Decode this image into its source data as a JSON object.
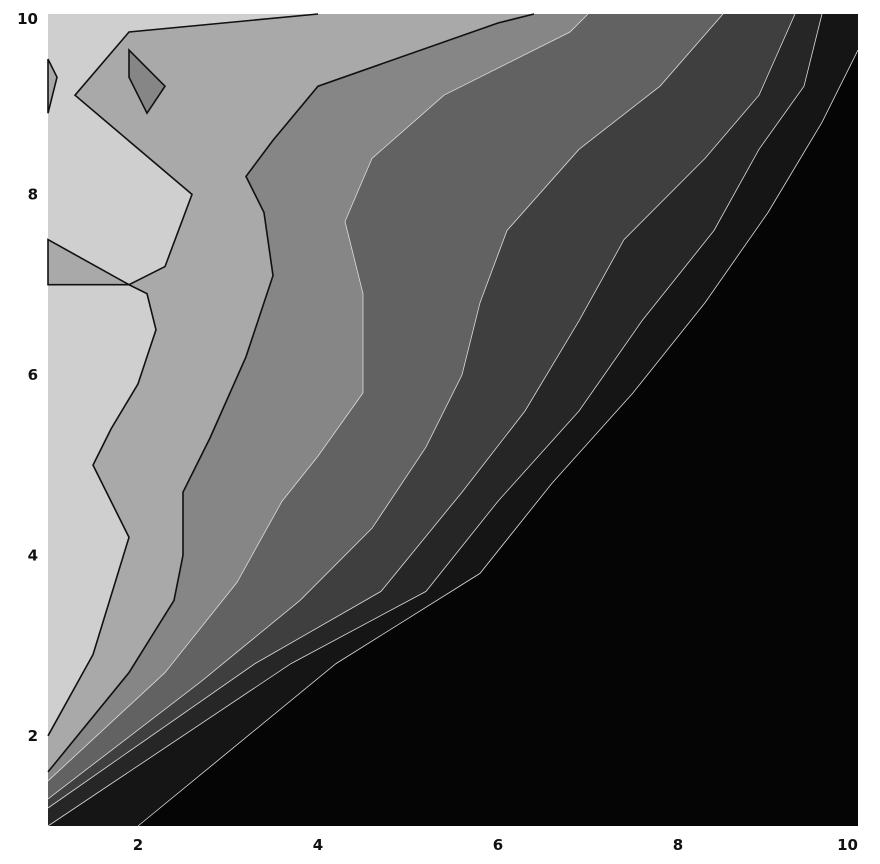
{
  "chart_data": {
    "type": "contour",
    "title": "",
    "xlabel": "",
    "ylabel": "",
    "xlim": [
      1,
      10
    ],
    "ylim": [
      1,
      10
    ],
    "grid": false,
    "legend": "none",
    "x_ticks": [
      "2",
      "4",
      "6",
      "8",
      "10"
    ],
    "y_ticks": [
      "2",
      "4",
      "6",
      "8",
      "10"
    ],
    "fill_colors": [
      "#cfcfcf",
      "#a9a9a9",
      "#868686",
      "#626262",
      "#3f3f3f",
      "#262626",
      "#151515",
      "#050505"
    ],
    "line_color": "#111111",
    "contour_lines": [
      {
        "level": 1,
        "points": [
          [
            1.0,
            2.0
          ],
          [
            1.5,
            2.9
          ],
          [
            1.9,
            4.2
          ],
          [
            1.5,
            5.0
          ],
          [
            1.7,
            5.4
          ],
          [
            2.0,
            5.9
          ],
          [
            2.1,
            6.2
          ],
          [
            2.2,
            6.5
          ],
          [
            2.1,
            6.9
          ],
          [
            1.9,
            7.0
          ],
          [
            2.3,
            7.2
          ],
          [
            2.6,
            8.0
          ],
          [
            1.3,
            9.1
          ],
          [
            1.9,
            9.8
          ],
          [
            4.0,
            10.0
          ]
        ]
      },
      {
        "level": 2,
        "points": [
          [
            1.0,
            1.6
          ],
          [
            1.9,
            2.7
          ],
          [
            2.4,
            3.5
          ],
          [
            2.5,
            4.0
          ],
          [
            2.5,
            4.7
          ],
          [
            2.8,
            5.3
          ],
          [
            3.2,
            6.2
          ],
          [
            3.5,
            7.1
          ],
          [
            3.4,
            7.8
          ],
          [
            3.2,
            8.2
          ],
          [
            3.5,
            8.6
          ],
          [
            4.0,
            9.2
          ],
          [
            6.0,
            9.9
          ],
          [
            6.4,
            10.0
          ]
        ]
      },
      {
        "level": 3,
        "points": [
          [
            1.0,
            1.5
          ],
          [
            2.3,
            2.7
          ],
          [
            3.1,
            3.7
          ],
          [
            3.6,
            4.6
          ],
          [
            4.0,
            5.1
          ],
          [
            4.5,
            5.8
          ],
          [
            4.5,
            6.9
          ],
          [
            4.3,
            7.7
          ],
          [
            4.6,
            8.4
          ],
          [
            5.4,
            9.1
          ],
          [
            6.8,
            9.8
          ],
          [
            7.0,
            10.0
          ]
        ]
      },
      {
        "level": 4,
        "points": [
          [
            1.0,
            1.3
          ],
          [
            2.7,
            2.6
          ],
          [
            3.8,
            3.5
          ],
          [
            4.6,
            4.3
          ],
          [
            5.2,
            5.2
          ],
          [
            5.6,
            6.0
          ],
          [
            5.8,
            6.8
          ],
          [
            6.1,
            7.6
          ],
          [
            6.9,
            8.5
          ],
          [
            7.8,
            9.2
          ],
          [
            8.5,
            10.0
          ]
        ]
      },
      {
        "level": 5,
        "points": [
          [
            1.0,
            1.2
          ],
          [
            3.3,
            2.8
          ],
          [
            4.7,
            3.6
          ],
          [
            5.6,
            4.7
          ],
          [
            6.3,
            5.6
          ],
          [
            6.9,
            6.6
          ],
          [
            7.4,
            7.5
          ],
          [
            8.3,
            8.4
          ],
          [
            8.9,
            9.1
          ],
          [
            9.3,
            10.0
          ]
        ]
      },
      {
        "level": 6,
        "points": [
          [
            1.0,
            1.0
          ],
          [
            3.7,
            2.8
          ],
          [
            5.2,
            3.6
          ],
          [
            6.0,
            4.6
          ],
          [
            6.9,
            5.6
          ],
          [
            7.6,
            6.6
          ],
          [
            8.4,
            7.6
          ],
          [
            8.9,
            8.5
          ],
          [
            9.4,
            9.2
          ],
          [
            9.6,
            10.0
          ]
        ]
      },
      {
        "level": 7,
        "points": [
          [
            2.0,
            1.0
          ],
          [
            4.2,
            2.8
          ],
          [
            5.8,
            3.8
          ],
          [
            6.6,
            4.8
          ],
          [
            7.5,
            5.8
          ],
          [
            8.3,
            6.8
          ],
          [
            9.0,
            7.8
          ],
          [
            9.6,
            8.8
          ],
          [
            10.0,
            9.6
          ]
        ]
      }
    ],
    "islands": [
      {
        "level": 2,
        "points": [
          [
            1.9,
            9.3
          ],
          [
            1.9,
            9.6
          ],
          [
            2.3,
            9.2
          ],
          [
            2.1,
            8.9
          ]
        ]
      },
      {
        "level": 1,
        "points": [
          [
            1.0,
            7.5
          ],
          [
            1.9,
            7.0
          ],
          [
            1.0,
            7.0
          ]
        ]
      },
      {
        "level": 1,
        "points": [
          [
            1.0,
            9.5
          ],
          [
            1.1,
            9.3
          ],
          [
            1.0,
            8.9
          ]
        ]
      }
    ]
  }
}
